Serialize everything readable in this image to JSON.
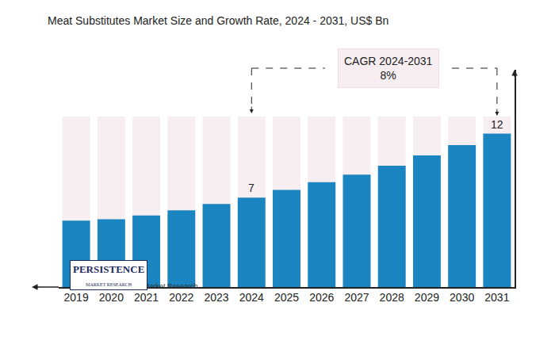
{
  "chart_data": {
    "type": "bar",
    "title": "Meat Substitutes Market Size and Growth Rate, 2024 - 2031, US$ Bn",
    "categories": [
      "2019",
      "2020",
      "2021",
      "2022",
      "2023",
      "2024",
      "2025",
      "2026",
      "2027",
      "2028",
      "2029",
      "2030",
      "2031"
    ],
    "values": [
      5.2,
      5.3,
      5.6,
      6.0,
      6.5,
      7,
      7.6,
      8.2,
      8.8,
      9.5,
      10.3,
      11.1,
      12
    ],
    "color": "#1a85c0",
    "ylim": [
      0,
      17
    ],
    "grid": false,
    "tick_labels": "x",
    "annotations": [
      {
        "category": "2024",
        "text": "7"
      },
      {
        "category": "2031",
        "text": "12"
      }
    ],
    "cagr": {
      "label": "CAGR 2024-2031",
      "value": "8%",
      "from": "2024",
      "to": "2031"
    },
    "source": "Source: Persistence Market Research",
    "logo": {
      "name": "PERSISTENCE",
      "subtitle": "MARKET RESEARCH"
    }
  }
}
